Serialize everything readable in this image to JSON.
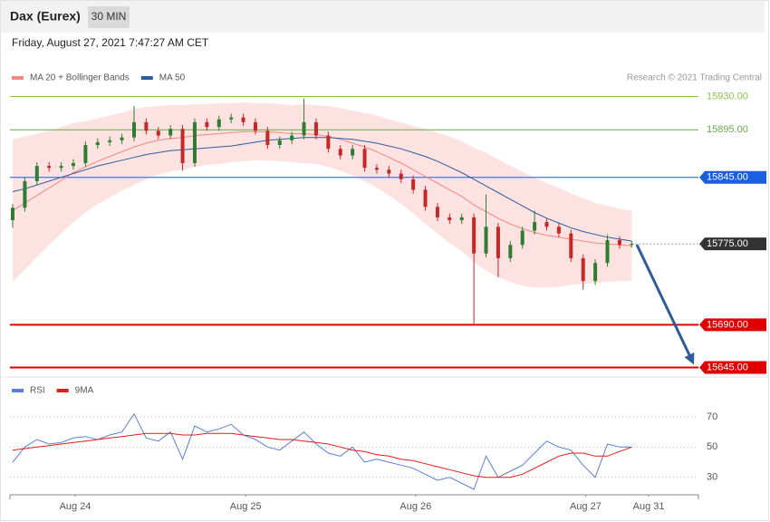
{
  "header": {
    "title": "Dax (Eurex)",
    "interval": "30 MIN",
    "timestamp": "Friday, August 27, 2021 7:47:27 AM CET"
  },
  "chart_data": [
    {
      "type": "candlestick",
      "source": "Research © 2021 Trading Central",
      "x": [
        0,
        1,
        2,
        3,
        4,
        5,
        6,
        7,
        8,
        9,
        10,
        11,
        12,
        13,
        14,
        15,
        16,
        17,
        18,
        19,
        20,
        21,
        22,
        23,
        24,
        25,
        26,
        27,
        28,
        29,
        30,
        31,
        32,
        33,
        34,
        35,
        36,
        37,
        38,
        39,
        40,
        41,
        42,
        43,
        44,
        45,
        46,
        47,
        48,
        49,
        50,
        51
      ],
      "open": [
        15800,
        15813,
        15841,
        15857,
        15855,
        15857,
        15860,
        15879,
        15882,
        15884,
        15887,
        15903,
        15894,
        15889,
        15896,
        15860,
        15903,
        15898,
        15906,
        15908,
        15903,
        15894,
        15879,
        15884,
        15889,
        15903,
        15889,
        15875,
        15868,
        15875,
        15855,
        15853,
        15849,
        15843,
        15832,
        15814,
        15803,
        15800,
        15803,
        15765,
        15793,
        15760,
        15774,
        15789,
        15798,
        15793,
        15786,
        15760,
        15736,
        15755,
        15779,
        15774
      ],
      "high": [
        15817,
        15845,
        15861,
        15861,
        15861,
        15864,
        15883,
        15886,
        15888,
        15891,
        15920,
        15907,
        15898,
        15900,
        15900,
        15907,
        15907,
        15910,
        15912,
        15912,
        15907,
        15898,
        15888,
        15893,
        15928,
        15907,
        15893,
        15879,
        15879,
        15879,
        15859,
        15857,
        15853,
        15847,
        15836,
        15818,
        15807,
        15807,
        15807,
        15827,
        15797,
        15778,
        15793,
        15810,
        15802,
        15797,
        15790,
        15764,
        15759,
        15785,
        15783,
        15778
      ],
      "low": [
        15792,
        15809,
        15837,
        15851,
        15851,
        15853,
        15856,
        15875,
        15878,
        15880,
        15883,
        15890,
        15885,
        15885,
        15852,
        15856,
        15894,
        15894,
        15902,
        15899,
        15890,
        15875,
        15875,
        15880,
        15885,
        15885,
        15871,
        15864,
        15864,
        15851,
        15849,
        15845,
        15839,
        15828,
        15810,
        15799,
        15796,
        15796,
        15691,
        15761,
        15740,
        15756,
        15770,
        15785,
        15789,
        15782,
        15756,
        15727,
        15732,
        15751,
        15770,
        15771
      ],
      "close": [
        15813,
        15841,
        15857,
        15855,
        15857,
        15860,
        15879,
        15882,
        15884,
        15887,
        15903,
        15894,
        15889,
        15896,
        15860,
        15903,
        15898,
        15906,
        15908,
        15903,
        15894,
        15879,
        15884,
        15889,
        15903,
        15889,
        15875,
        15868,
        15875,
        15855,
        15853,
        15849,
        15843,
        15832,
        15814,
        15803,
        15800,
        15803,
        15765,
        15793,
        15760,
        15774,
        15789,
        15798,
        15793,
        15786,
        15760,
        15736,
        15755,
        15779,
        15774,
        15775
      ],
      "up_color": "#2e7d32",
      "down_color": "#c62828",
      "bands": {
        "color": "#fde2e2",
        "upper": [
          15885,
          15888,
          15891,
          15894,
          15898,
          15902,
          15904,
          15907,
          15910,
          15913,
          15917,
          15919,
          15920,
          15921,
          15921,
          15922,
          15922,
          15923,
          15923,
          15924,
          15923,
          15923,
          15922,
          15921,
          15922,
          15921,
          15920,
          15918,
          15915,
          15913,
          15910,
          15906,
          15903,
          15899,
          15896,
          15892,
          15888,
          15883,
          15876,
          15871,
          15864,
          15857,
          15851,
          15845,
          15839,
          15834,
          15828,
          15823,
          15818,
          15815,
          15812,
          15810
        ],
        "lower": [
          15735,
          15748,
          15761,
          15774,
          15786,
          15798,
          15808,
          15817,
          15824,
          15831,
          15837,
          15843,
          15848,
          15851,
          15853,
          15856,
          15858,
          15859,
          15861,
          15862,
          15863,
          15863,
          15862,
          15861,
          15860,
          15859,
          15856,
          15852,
          15847,
          15841,
          15834,
          15826,
          15817,
          15807,
          15796,
          15786,
          15776,
          15767,
          15756,
          15747,
          15740,
          15735,
          15731,
          15729,
          15729,
          15730,
          15732,
          15733,
          15734,
          15735,
          15736,
          15736
        ]
      },
      "series": [
        {
          "name": "MA 20 + Bollinger Bands",
          "color": "#f4877f",
          "values": [
            15810,
            15818,
            15826,
            15834,
            15842,
            15850,
            15856,
            15862,
            15867,
            15872,
            15877,
            15881,
            15884,
            15886,
            15887,
            15889,
            15890,
            15891,
            15892,
            15893,
            15893,
            15893,
            15892,
            15891,
            15891,
            15890,
            15888,
            15885,
            15881,
            15877,
            15872,
            15866,
            15860,
            15853,
            15846,
            15839,
            15832,
            15825,
            15816,
            15809,
            15802,
            15796,
            15791,
            15787,
            15784,
            15782,
            15780,
            15778,
            15776,
            15775,
            15774,
            15773
          ]
        },
        {
          "name": "MA 50",
          "color": "#2f5b9a",
          "values": [
            15830,
            15833,
            15837,
            15841,
            15845,
            15849,
            15853,
            15857,
            15860,
            15863,
            15866,
            15869,
            15871,
            15873,
            15874,
            15875,
            15876,
            15877,
            15878,
            15880,
            15882,
            15884,
            15885,
            15886,
            15887,
            15887,
            15887,
            15886,
            15885,
            15883,
            15881,
            15878,
            15875,
            15871,
            15867,
            15862,
            15856,
            15850,
            15843,
            15836,
            15829,
            15822,
            15815,
            15808,
            15802,
            15797,
            15792,
            15788,
            15785,
            15782,
            15780,
            15778
          ]
        }
      ],
      "levels": [
        {
          "value": 15930,
          "label": "15930.00",
          "color": "#8bc34a",
          "box": false,
          "dotted": false
        },
        {
          "value": 15895,
          "label": "15895.00",
          "color": "#6aa84f",
          "box": false,
          "dotted": false
        },
        {
          "value": 15845,
          "label": "15845.00",
          "color": "#1a5fe0",
          "box": true,
          "dotted": false
        },
        {
          "value": 15775,
          "label": "15775.00",
          "color": "#333333",
          "box": true,
          "dotted": true
        },
        {
          "value": 15690,
          "label": "15690.00",
          "color": "#e00000",
          "box": true,
          "dotted": false
        },
        {
          "value": 15645,
          "label": "15645.00",
          "color": "#e00000",
          "box": true,
          "dotted": false
        }
      ],
      "xlim": [
        -0.224,
        56.5
      ],
      "ylim": [
        15636,
        15941
      ]
    },
    {
      "type": "line",
      "x": [
        0,
        1,
        2,
        3,
        4,
        5,
        6,
        7,
        8,
        9,
        10,
        11,
        12,
        13,
        14,
        15,
        16,
        17,
        18,
        19,
        20,
        21,
        22,
        23,
        24,
        25,
        26,
        27,
        28,
        29,
        30,
        31,
        32,
        33,
        34,
        35,
        36,
        37,
        38,
        39,
        40,
        41,
        42,
        43,
        44,
        45,
        46,
        47,
        48,
        49,
        50,
        51
      ],
      "series": [
        {
          "name": "RSI",
          "color": "#5b7fd6",
          "values": [
            40,
            50,
            55,
            52,
            53,
            56,
            57,
            55,
            58,
            60,
            72,
            56,
            54,
            60,
            42,
            64,
            60,
            62,
            65,
            58,
            55,
            50,
            48,
            54,
            60,
            52,
            46,
            44,
            50,
            40,
            42,
            40,
            38,
            36,
            32,
            28,
            30,
            26,
            22,
            44,
            30,
            34,
            38,
            46,
            54,
            50,
            48,
            38,
            30,
            52,
            50,
            50
          ]
        },
        {
          "name": "9MA",
          "color": "#e31a1c",
          "values": [
            48,
            49,
            50,
            51,
            52,
            53,
            54,
            55,
            56,
            57,
            58,
            59,
            59,
            59,
            58,
            58,
            59,
            59,
            59,
            58,
            57,
            56,
            55,
            55,
            54,
            53,
            52,
            50,
            48,
            47,
            45,
            44,
            42,
            41,
            39,
            37,
            35,
            33,
            31,
            30,
            30,
            30,
            32,
            36,
            40,
            44,
            46,
            46,
            44,
            44,
            47,
            50
          ]
        }
      ],
      "xlim": [
        -0.224,
        56.5
      ],
      "ylim": [
        19,
        82
      ],
      "yticks": [
        70,
        50,
        30
      ],
      "xticks": [
        {
          "value": 5.15,
          "label": "Aug 24"
        },
        {
          "value": 19.2,
          "label": "Aug 25"
        },
        {
          "value": 33.2,
          "label": "Aug 26"
        },
        {
          "value": 47.2,
          "label": "Aug 27"
        },
        {
          "value": 52.4,
          "label": "Aug 31"
        }
      ]
    }
  ]
}
